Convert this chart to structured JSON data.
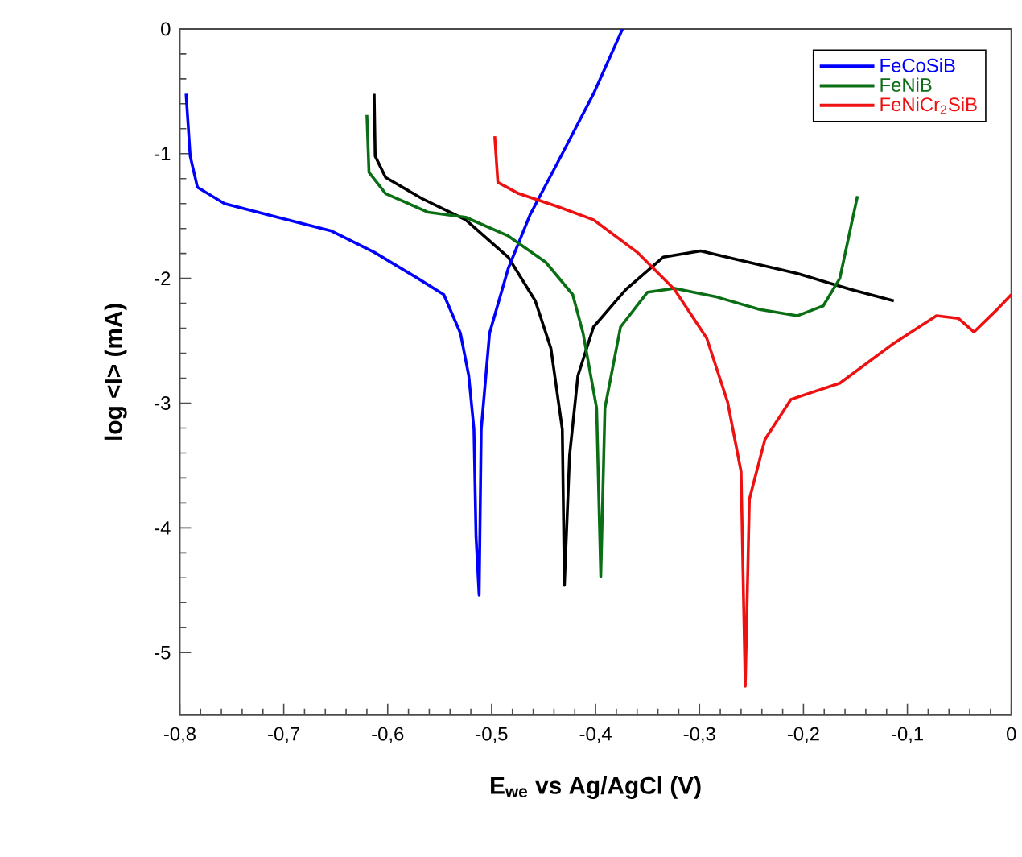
{
  "chart_data": {
    "type": "line",
    "xlabel": "E$_{we}$ vs Ag/AgCl (V)",
    "ylabel": "log <I> (mA)",
    "xlim": [
      -0.8,
      0
    ],
    "ylim": [
      -5.5,
      0
    ],
    "xticks": [
      {
        "value": -0.8,
        "label": "-0,8"
      },
      {
        "value": -0.7,
        "label": "-0,7"
      },
      {
        "value": -0.6,
        "label": "-0,6"
      },
      {
        "value": -0.5,
        "label": "-0,5"
      },
      {
        "value": -0.4,
        "label": "-0,4"
      },
      {
        "value": -0.3,
        "label": "-0,3"
      },
      {
        "value": -0.2,
        "label": "-0,2"
      },
      {
        "value": -0.1,
        "label": "-0,1"
      },
      {
        "value": 0,
        "label": "0"
      }
    ],
    "yticks": [
      0,
      -1,
      -2,
      -3,
      -4,
      -5
    ],
    "legend": "top right",
    "grid": false,
    "marker": "none",
    "line_style": "solid",
    "series": [
      {
        "color": "#000000",
        "x": [
          -0.613,
          -0.612,
          -0.602,
          -0.567,
          -0.525,
          -0.484,
          -0.458,
          -0.443,
          -0.432,
          -0.43,
          -0.425,
          -0.417,
          -0.402,
          -0.371,
          -0.335,
          -0.299,
          -0.258,
          -0.206,
          -0.154,
          -0.113
        ],
        "values": [
          -0.52,
          -1.02,
          -1.19,
          -1.36,
          -1.53,
          -1.83,
          -2.18,
          -2.56,
          -3.21,
          -4.46,
          -3.42,
          -2.78,
          -2.39,
          -2.09,
          -1.83,
          -1.78,
          -1.86,
          -1.96,
          -2.09,
          -2.18
        ]
      },
      {
        "name": "FeCoSiB",
        "color": "#0000ff",
        "x": [
          -0.794,
          -0.79,
          -0.783,
          -0.757,
          -0.706,
          -0.654,
          -0.613,
          -0.571,
          -0.546,
          -0.53,
          -0.522,
          -0.517,
          -0.515,
          -0.512,
          -0.51,
          -0.502,
          -0.484,
          -0.463,
          -0.432,
          -0.402,
          -0.374
        ],
        "values": [
          -0.52,
          -1.02,
          -1.27,
          -1.4,
          -1.51,
          -1.62,
          -1.79,
          -2.0,
          -2.13,
          -2.44,
          -2.78,
          -3.21,
          -4.07,
          -4.54,
          -3.21,
          -2.44,
          -1.92,
          -1.49,
          -1.0,
          -0.52,
          0.0
        ]
      },
      {
        "name": "FeNiB",
        "color": "#0a6e14",
        "x": [
          -0.62,
          -0.618,
          -0.602,
          -0.561,
          -0.525,
          -0.484,
          -0.448,
          -0.422,
          -0.412,
          -0.399,
          -0.395,
          -0.391,
          -0.376,
          -0.35,
          -0.324,
          -0.283,
          -0.242,
          -0.206,
          -0.181,
          -0.165,
          -0.154,
          -0.148
        ],
        "values": [
          -0.69,
          -1.15,
          -1.32,
          -1.47,
          -1.51,
          -1.66,
          -1.87,
          -2.13,
          -2.44,
          -3.04,
          -4.39,
          -3.04,
          -2.39,
          -2.11,
          -2.08,
          -2.15,
          -2.25,
          -2.3,
          -2.22,
          -2.0,
          -1.57,
          -1.34
        ]
      },
      {
        "name": "FeNiCr$_{2}$SiB",
        "color": "#ee1111",
        "x": [
          -0.497,
          -0.494,
          -0.474,
          -0.438,
          -0.402,
          -0.36,
          -0.324,
          -0.293,
          -0.273,
          -0.26,
          -0.256,
          -0.252,
          -0.237,
          -0.212,
          -0.165,
          -0.113,
          -0.072,
          -0.051,
          -0.036,
          -0.015,
          0.0
        ],
        "values": [
          -0.86,
          -1.23,
          -1.32,
          -1.42,
          -1.53,
          -1.79,
          -2.09,
          -2.48,
          -2.99,
          -3.55,
          -5.27,
          -3.77,
          -3.29,
          -2.97,
          -2.84,
          -2.52,
          -2.3,
          -2.32,
          -2.43,
          -2.26,
          -2.13
        ]
      }
    ]
  }
}
